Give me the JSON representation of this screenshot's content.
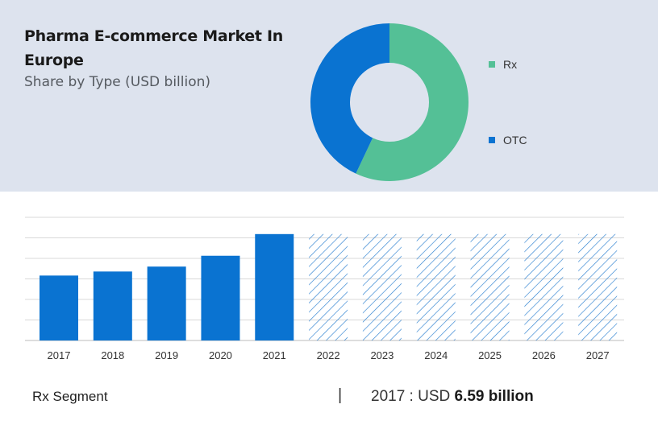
{
  "header": {
    "title": "Pharma E-commerce Market In Europe",
    "subtitle": "Share by Type (USD billion)"
  },
  "colors": {
    "rx": "#54c096",
    "otc": "#0a73d1",
    "panel": "#dde3ee",
    "bar": "#0a73d1",
    "hatch": "#2a7fd0"
  },
  "chart_data": [
    {
      "type": "pie",
      "variant": "donut",
      "series": [
        {
          "name": "Rx",
          "value": 57,
          "color": "#54c096"
        },
        {
          "name": "OTC",
          "value": 43,
          "color": "#0a73d1"
        }
      ],
      "legend": "right"
    },
    {
      "type": "bar",
      "categories": [
        "2017",
        "2018",
        "2019",
        "2020",
        "2021",
        "2022",
        "2023",
        "2024",
        "2025",
        "2026",
        "2027"
      ],
      "values": [
        6.59,
        7.0,
        7.5,
        8.6,
        10.8,
        null,
        null,
        null,
        null,
        null,
        null
      ],
      "forecast_categories": [
        "2022",
        "2023",
        "2024",
        "2025",
        "2026",
        "2027"
      ],
      "forecast_level": 10.8,
      "ylim": [
        0,
        12.5
      ],
      "grid": true
    }
  ],
  "footer": {
    "segment": "Rx Segment",
    "separator": "|",
    "year_label": "2017 : ",
    "currency": "USD ",
    "value": "6.59 billion"
  }
}
